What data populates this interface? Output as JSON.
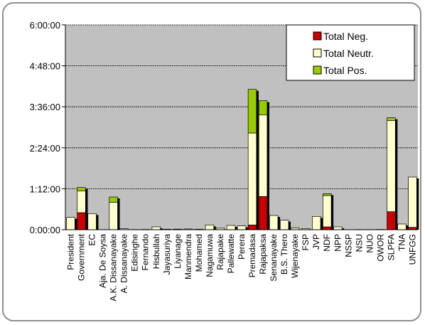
{
  "chart_data": {
    "type": "bar",
    "stacked": true,
    "title": "",
    "xlabel": "",
    "ylabel": "",
    "y_unit": "h:mm:ss",
    "ylim_seconds": [
      0,
      21600
    ],
    "y_ticks": [
      "0:00:00",
      "1:12:00",
      "2:24:00",
      "3:36:00",
      "4:48:00",
      "6:00:00"
    ],
    "grid": true,
    "legend_position": "top-right",
    "categories": [
      "President",
      "Government",
      "EC",
      "Aja. De Soysa",
      "A.K. Dissanayake",
      "A. Dissanayake",
      "Edisinghe",
      "Fernando",
      "Hisbullah",
      "Jayasuriya",
      "Liyanage",
      "Manmendra",
      "Mohamed",
      "Nagamuwa",
      "Rajapake",
      "Pallewatte",
      "Perera",
      "Premadasa",
      "Rajapaksa",
      "Senanayake",
      "B.S. Thero",
      "Wijenayake",
      "FSP",
      "JVP",
      "NDF",
      "NPP",
      "NSSP",
      "NSU",
      "NUO",
      "OWOR",
      "SLPFA",
      "TNA",
      "UNFGG"
    ],
    "series": [
      {
        "name": "Total Neg.",
        "color": "#cc0000",
        "values": [
          0,
          1800,
          0,
          0,
          0,
          0,
          0,
          0,
          0,
          0,
          0,
          0,
          0,
          0,
          0,
          0,
          0,
          500,
          3500,
          0,
          0,
          0,
          0,
          0,
          300,
          0,
          0,
          0,
          0,
          0,
          1900,
          0,
          250
        ]
      },
      {
        "name": "Total Neutr.",
        "color": "#ffffcc",
        "values": [
          1300,
          2300,
          1700,
          0,
          2900,
          100,
          20,
          30,
          300,
          50,
          60,
          80,
          50,
          500,
          160,
          450,
          400,
          9700,
          8600,
          1500,
          1000,
          180,
          120,
          1400,
          3300,
          300,
          0,
          20,
          20,
          30,
          9600,
          600,
          5300
        ]
      },
      {
        "name": "Total Pos.",
        "color": "#99cc00",
        "values": [
          0,
          350,
          0,
          0,
          550,
          0,
          0,
          0,
          0,
          0,
          0,
          0,
          0,
          0,
          0,
          0,
          0,
          4600,
          1500,
          0,
          0,
          0,
          0,
          0,
          200,
          0,
          0,
          0,
          0,
          0,
          300,
          0,
          0
        ]
      }
    ]
  }
}
